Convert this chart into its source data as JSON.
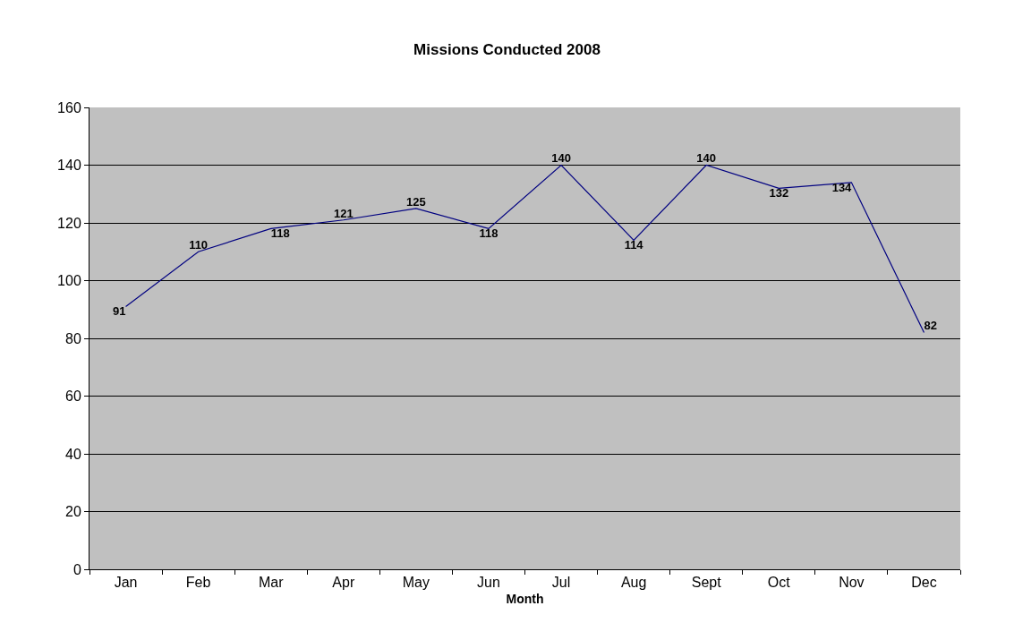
{
  "chart_data": {
    "type": "line",
    "title": "Missions Conducted 2008",
    "xlabel": "Month",
    "categories": [
      "Jan",
      "Feb",
      "Mar",
      "Apr",
      "May",
      "Jun",
      "Jul",
      "Aug",
      "Sept",
      "Oct",
      "Nov",
      "Dec"
    ],
    "series": [
      {
        "color": "#000080",
        "values": [
          91,
          110,
          118,
          121,
          125,
          118,
          140,
          114,
          140,
          132,
          134,
          82
        ]
      }
    ],
    "ylim": [
      0,
      160
    ],
    "yticks": [
      0,
      20,
      40,
      60,
      80,
      100,
      120,
      140,
      160
    ],
    "grid": "y",
    "data_labels": true,
    "marker": "none",
    "line_style": "solid"
  }
}
